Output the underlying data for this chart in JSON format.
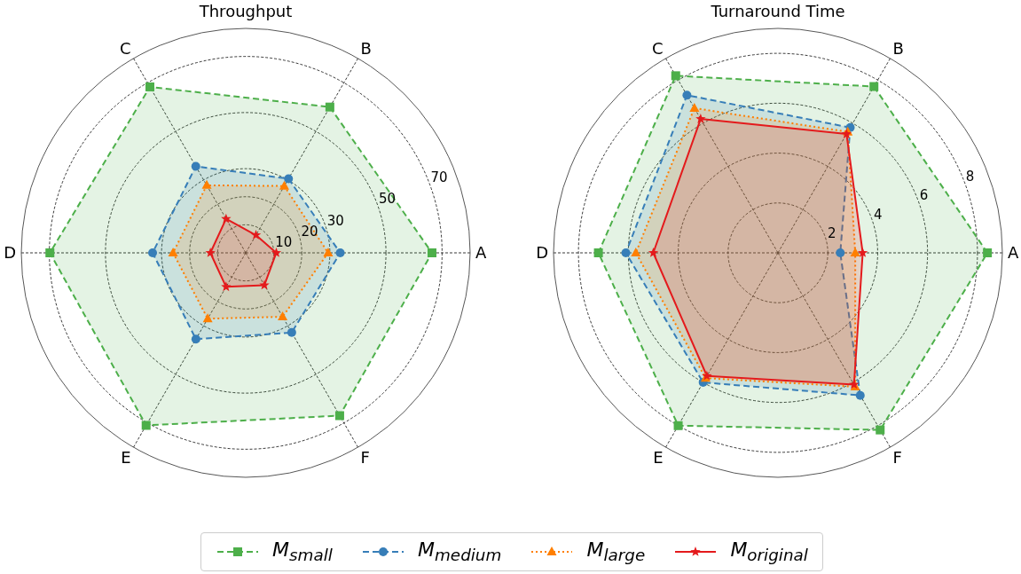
{
  "chart_data": [
    {
      "type": "radar",
      "title": "Throughput",
      "categories": [
        "B",
        "A",
        "F",
        "E",
        "D",
        "C"
      ],
      "ylim": [
        0,
        80
      ],
      "yticks": [
        10,
        20,
        30,
        50,
        70
      ],
      "grid": true,
      "legend": "bottom",
      "series": [
        {
          "name": "M$_{small}$",
          "color": "#4daf4a",
          "marker": "square",
          "line_style": "dashed",
          "values": [
            60,
            66.4,
            67,
            71,
            69.8,
            68.3
          ]
        },
        {
          "name": "M$_{medium}$",
          "color": "#377eb8",
          "marker": "circle",
          "line_style": "dashed",
          "values": [
            30.5,
            33.7,
            32.8,
            35.5,
            33.2,
            35.6
          ]
        },
        {
          "name": "M$_{large}$",
          "color": "#ff7f00",
          "marker": "triangle",
          "line_style": "dotted",
          "values": [
            27.5,
            29.4,
            26.3,
            27.1,
            25.9,
            27.8
          ]
        },
        {
          "name": "M$_{original}$",
          "color": "#e41a1c",
          "marker": "star",
          "line_style": "solid",
          "values": [
            7.3,
            10.9,
            13.3,
            14,
            12.6,
            14
          ]
        }
      ]
    },
    {
      "type": "radar",
      "title": "Turnaround Time",
      "categories": [
        "B",
        "A",
        "F",
        "E",
        "D",
        "C"
      ],
      "ylim": [
        0,
        9
      ],
      "yticks": [
        2,
        4,
        6,
        8
      ],
      "grid": true,
      "series": [
        {
          "color": "#4daf4a",
          "marker": "square",
          "line_style": "dashed",
          "values": [
            7.7,
            8.4,
            8.2,
            8.0,
            7.2,
            8.2
          ]
        },
        {
          "color": "#377eb8",
          "marker": "circle",
          "line_style": "dashed",
          "values": [
            5.8,
            2.5,
            6.6,
            6.0,
            6.1,
            7.3
          ]
        },
        {
          "color": "#ff7f00",
          "marker": "triangle",
          "line_style": "dotted",
          "values": [
            5.6,
            3.1,
            6.2,
            5.8,
            5.7,
            6.7
          ]
        },
        {
          "color": "#e41a1c",
          "marker": "star",
          "line_style": "solid",
          "values": [
            5.5,
            3.4,
            6.1,
            5.7,
            5.0,
            6.2
          ]
        }
      ]
    }
  ]
}
